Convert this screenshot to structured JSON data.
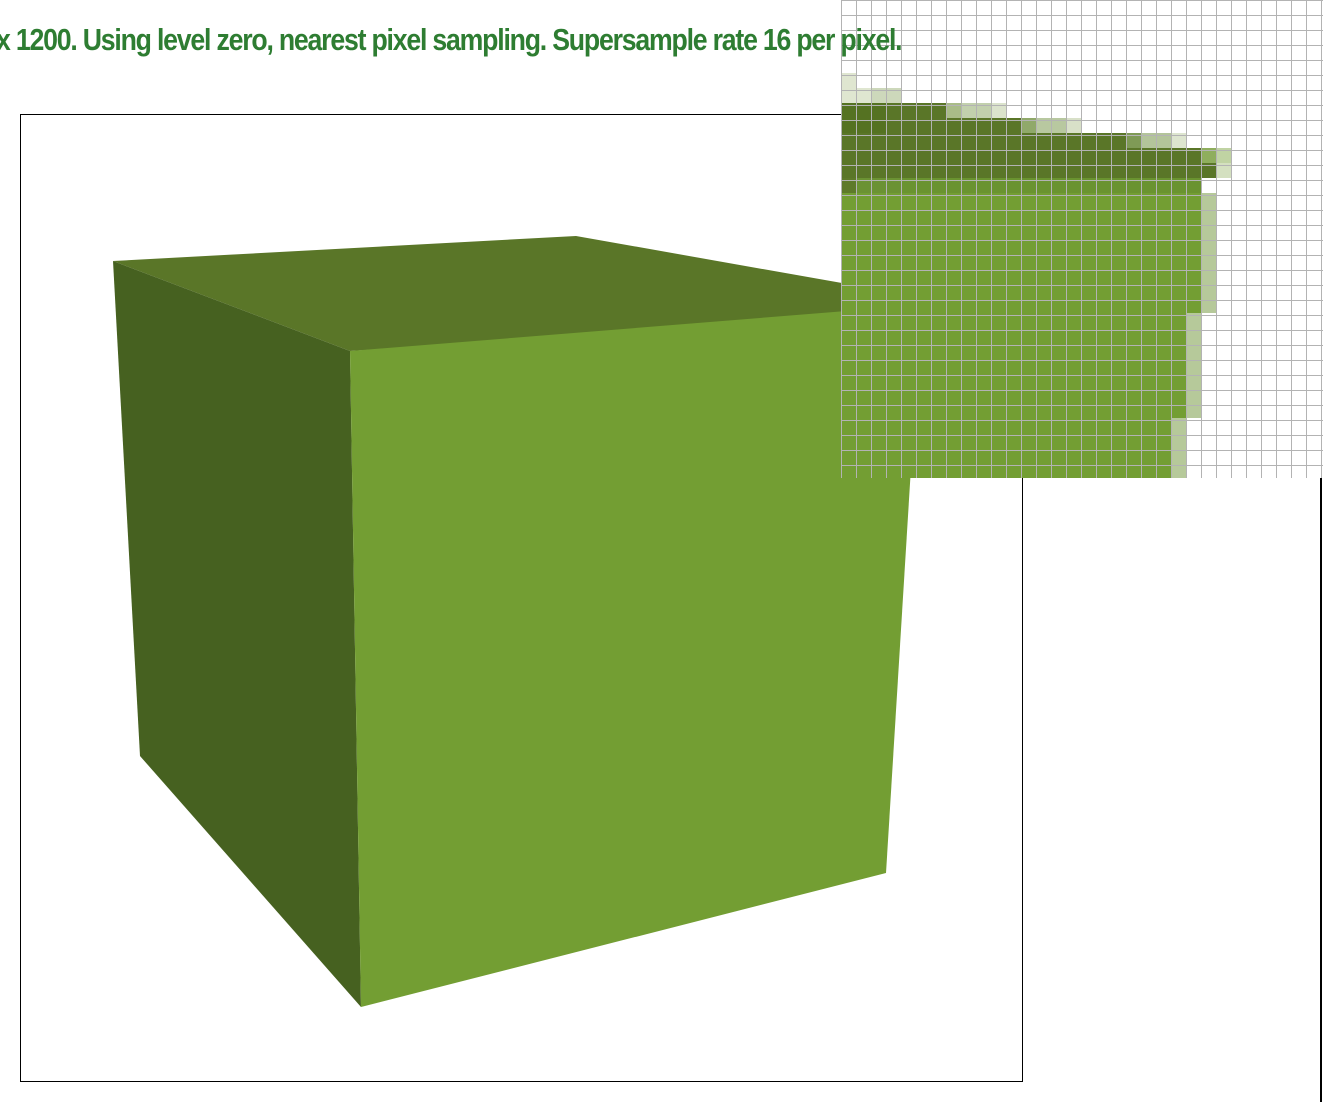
{
  "status": {
    "text": "x 1200. Using level zero, nearest pixel sampling. Supersample rate 16 per pixel."
  },
  "colors": {
    "status_text": "#2e7d32",
    "cube_top": "#5a7628",
    "cube_left": "#466120",
    "cube_front": "#739e33",
    "canvas_border": "#000000",
    "grid_line": "#b3b3b3"
  },
  "render": {
    "shape": "cube",
    "faces": [
      "top",
      "left",
      "front"
    ]
  },
  "zoom": {
    "kind": "pixel-inspector",
    "shows": "magnified pixel grid of the cube's top-right corner"
  }
}
